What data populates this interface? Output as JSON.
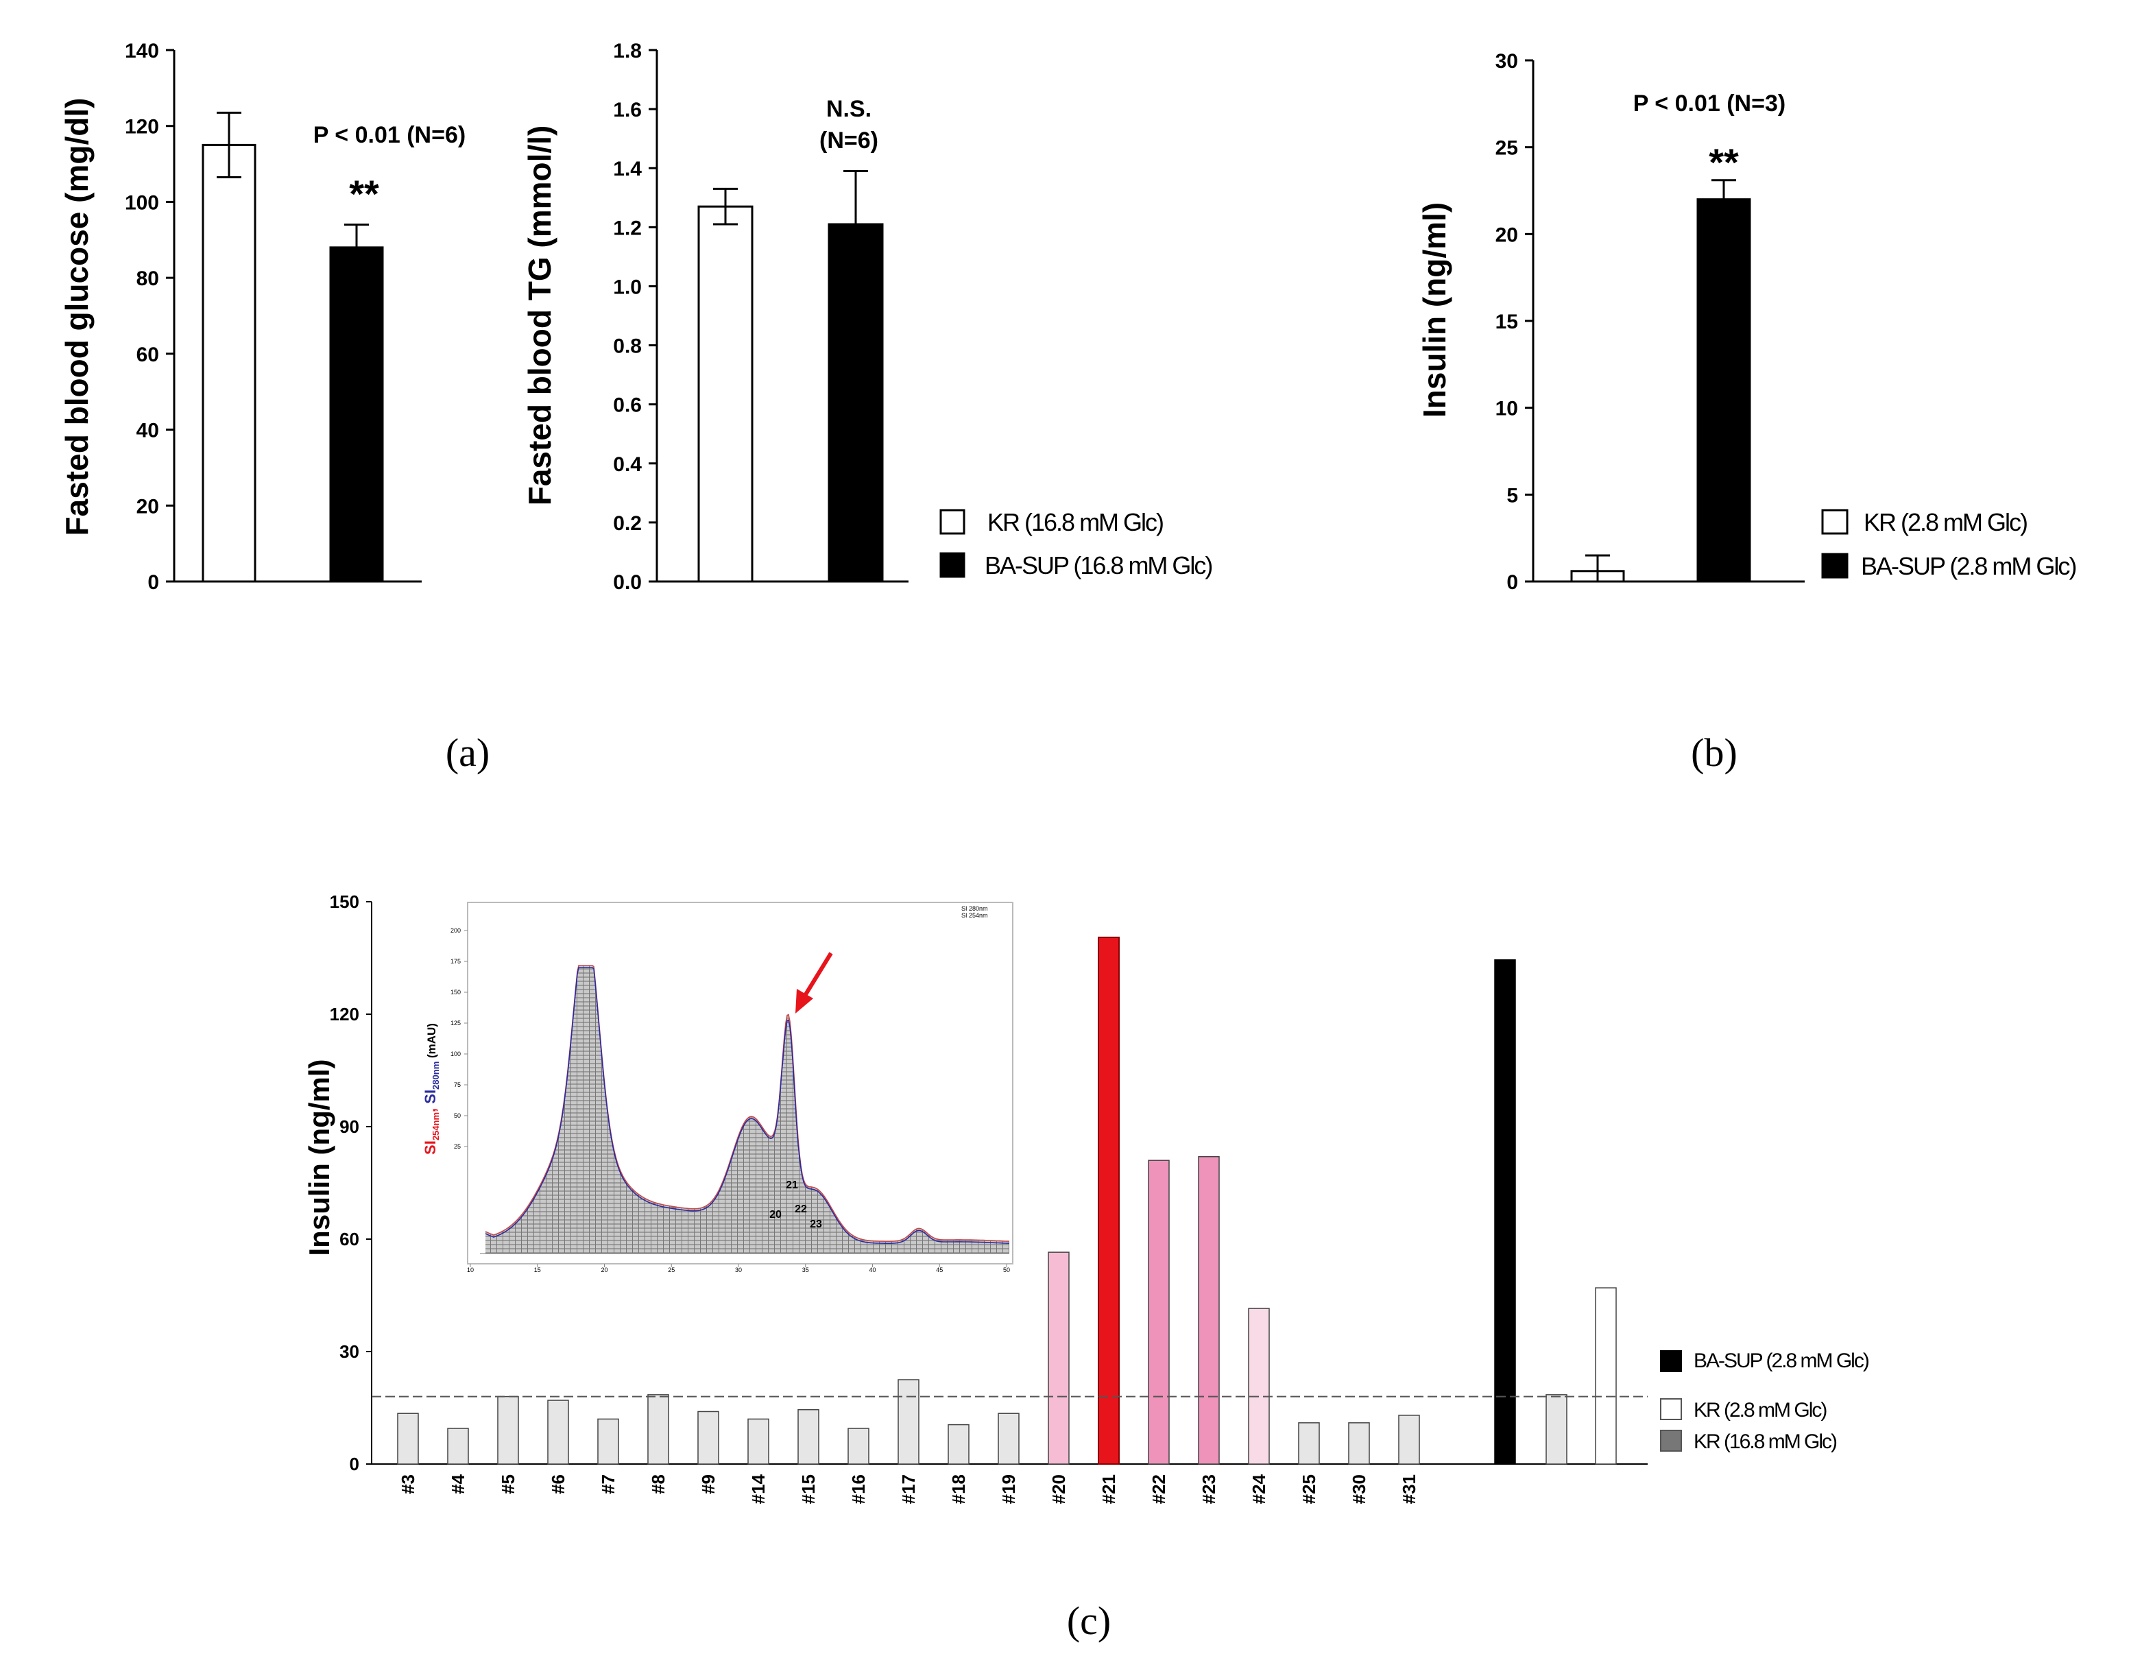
{
  "chart_data": [
    {
      "type": "bar",
      "panel": "a1",
      "ylabel": "Fasted blood glucose (mg/dl)",
      "ylim": [
        0,
        140
      ],
      "yticks": [
        "0",
        "20",
        "40",
        "60",
        "80",
        "100",
        "120",
        "140"
      ],
      "categories": [
        "KR (16.8 mM Glc)",
        "BA-SUP (16.8 mM Glc)"
      ],
      "values": [
        115,
        88
      ],
      "errors": [
        8.5,
        6
      ],
      "fills": [
        "#ffffff",
        "#000000"
      ],
      "annotation": "P < 0.01 (N=6)",
      "significance": "**"
    },
    {
      "type": "bar",
      "panel": "a2",
      "ylabel": "Fasted blood TG (mmol/l)",
      "ylim": [
        0,
        1.8
      ],
      "yticks": [
        "0.0",
        "0.2",
        "0.4",
        "0.6",
        "0.8",
        "1.0",
        "1.2",
        "1.4",
        "1.6",
        "1.8"
      ],
      "categories": [
        "KR (16.8 mM Glc)",
        "BA-SUP (16.8 mM Glc)"
      ],
      "values": [
        1.27,
        1.21
      ],
      "errors": [
        0.06,
        0.18
      ],
      "fills": [
        "#ffffff",
        "#000000"
      ],
      "annotation_line1": "N.S.",
      "annotation_line2": "(N=6)",
      "legend": [
        "KR (16.8 mM Glc)",
        "BA-SUP (16.8 mM Glc)"
      ]
    },
    {
      "type": "bar",
      "panel": "b",
      "ylabel": "Insulin (ng/ml)",
      "ylim": [
        0,
        30
      ],
      "yticks": [
        "0",
        "5",
        "10",
        "15",
        "20",
        "25",
        "30"
      ],
      "categories": [
        "KR (2.8 mM Glc)",
        "BA-SUP (2.8 mM Glc)"
      ],
      "values": [
        0.6,
        22
      ],
      "errors": [
        0.9,
        1.1
      ],
      "fills": [
        "#ffffff",
        "#000000"
      ],
      "annotation": "P < 0.01 (N=3)",
      "significance": "**",
      "legend": [
        "KR  (2.8 mM Glc)",
        "BA-SUP (2.8 mM Glc)"
      ]
    },
    {
      "type": "bar",
      "panel": "c",
      "ylabel": "Insulin (ng/ml)",
      "ylim": [
        0,
        150
      ],
      "yticks": [
        "0",
        "30",
        "60",
        "90",
        "120",
        "150"
      ],
      "categories": [
        "#3",
        "#4",
        "#5",
        "#6",
        "#7",
        "#8",
        "#9",
        "#14",
        "#15",
        "#16",
        "#17",
        "#18",
        "#19",
        "#20",
        "#21",
        "#22",
        "#23",
        "#24",
        "#25",
        "#30",
        "#31"
      ],
      "values": [
        13.5,
        9.5,
        18,
        17,
        12,
        18.5,
        14,
        12,
        14.5,
        9.5,
        22.5,
        10.5,
        13.5,
        56.5,
        140.5,
        81,
        82,
        41.5,
        11,
        11,
        13
      ],
      "fills": [
        "#e6e6e6",
        "#e6e6e6",
        "#e6e6e6",
        "#e6e6e6",
        "#e6e6e6",
        "#e6e6e6",
        "#e6e6e6",
        "#e6e6e6",
        "#e6e6e6",
        "#e6e6e6",
        "#e6e6e6",
        "#e6e6e6",
        "#e6e6e6",
        "#f5bcd4",
        "#e8141c",
        "#ef93bb",
        "#ef93bb",
        "#f9dbe8",
        "#e6e6e6",
        "#e6e6e6",
        "#e6e6e6"
      ],
      "controls": [
        {
          "name": "BA-SUP (2.8 mM Glc)",
          "value": 134.5,
          "fill": "#000000"
        },
        {
          "name": "KR (16.8 mM Glc)",
          "value": 18.5,
          "fill": "#e6e6e6"
        },
        {
          "name": "KR (2.8 mM Glc)",
          "value": 47,
          "fill": "#ffffff"
        }
      ],
      "threshold": 18,
      "legend": [
        "BA-SUP (2.8 mM Glc)",
        "KR (2.8 mM Glc)",
        "KR (16.8 mM Glc)"
      ],
      "inset": {
        "type": "line",
        "ylabel_a": "SI",
        "ylabel_a_sub": "254nm",
        "ylabel_sep": ", ",
        "ylabel_b": "SI",
        "ylabel_b_sub": "280nm",
        "ylabel_unit": " (mAU)",
        "yticks": [
          "200",
          "175",
          "150",
          "125",
          "100",
          "75",
          "50",
          "25"
        ],
        "xticks": [
          "10",
          "15",
          "20",
          "25",
          "30",
          "35",
          "40",
          "45",
          "50"
        ],
        "legend": [
          "SI 280nm",
          "SI 254nm"
        ],
        "peaks": [
          "21",
          "20",
          "22",
          "23"
        ]
      }
    }
  ],
  "panel_labels": [
    "(a)",
    "(b)",
    "(c)"
  ],
  "colors": {
    "axis": "#000000",
    "red": "#e8141c",
    "magenta": "#ff40ff"
  }
}
